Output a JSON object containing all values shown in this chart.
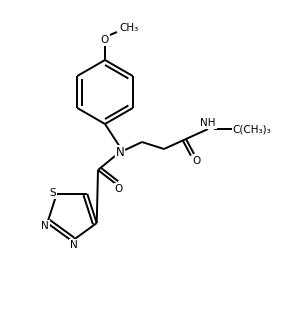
{
  "background_color": "#ffffff",
  "line_color": "#000000",
  "lw": 1.4,
  "figsize": [
    2.82,
    3.2
  ],
  "dpi": 100,
  "xlim": [
    0,
    282
  ],
  "ylim": [
    0,
    320
  ]
}
